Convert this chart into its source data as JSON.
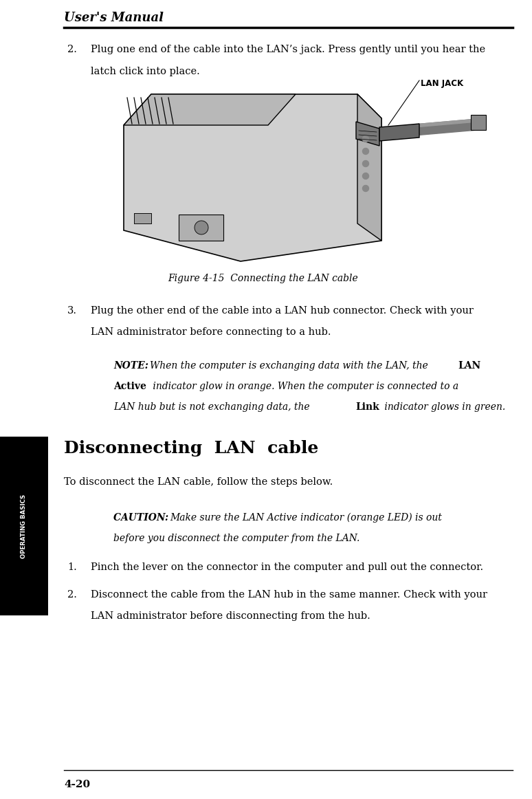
{
  "bg_color": "#ffffff",
  "text_color": "#000000",
  "page_width": 7.74,
  "page_height": 11.62,
  "header_title": "User's Manual",
  "footer_text": "4-20",
  "sidebar_text": "OPERATING BASICS",
  "lan_jack_label": "LAN JACK",
  "figure_caption": "Figure 4-15  Connecting the LAN cable",
  "item2_num": "2.",
  "item2_line1": "Plug one end of the cable into the LAN’s jack. Press gently until you hear the",
  "item2_line2": "latch click into place.",
  "item3_num": "3.",
  "item3_line1": "Plug the other end of the cable into a LAN hub connector. Check with your",
  "item3_line2": "LAN administrator before connecting to a hub.",
  "note_prefix": "NOTE: ",
  "note_l1_italic": "When the computer is exchanging data with the LAN, the ",
  "note_l1_bold": "LAN",
  "note_l2_bold": "Active",
  "note_l2_italic": " indicator glow in orange. When the computer is connected to a",
  "note_l3_italic": "LAN hub but is not exchanging data, the ",
  "note_l3_bold": "Link",
  "note_l3_italic2": " indicator glows in green.",
  "section_title": "Disconnecting  LAN  cable",
  "section_intro": "To disconnect the LAN cable, follow the steps below.",
  "caution_prefix": "CAUTION: ",
  "caution_l1": "Make sure the LAN Active indicator (orange LED) is out",
  "caution_l2": "before you disconnect the computer from the LAN.",
  "sub1_num": "1.",
  "sub1_text": "Pinch the lever on the connector in the computer and pull out the connector.",
  "sub2_num": "2.",
  "sub2_line1": "Disconnect the cable from the LAN hub in the same manner. Check with your",
  "sub2_line2": "LAN administrator before disconnecting from the hub."
}
